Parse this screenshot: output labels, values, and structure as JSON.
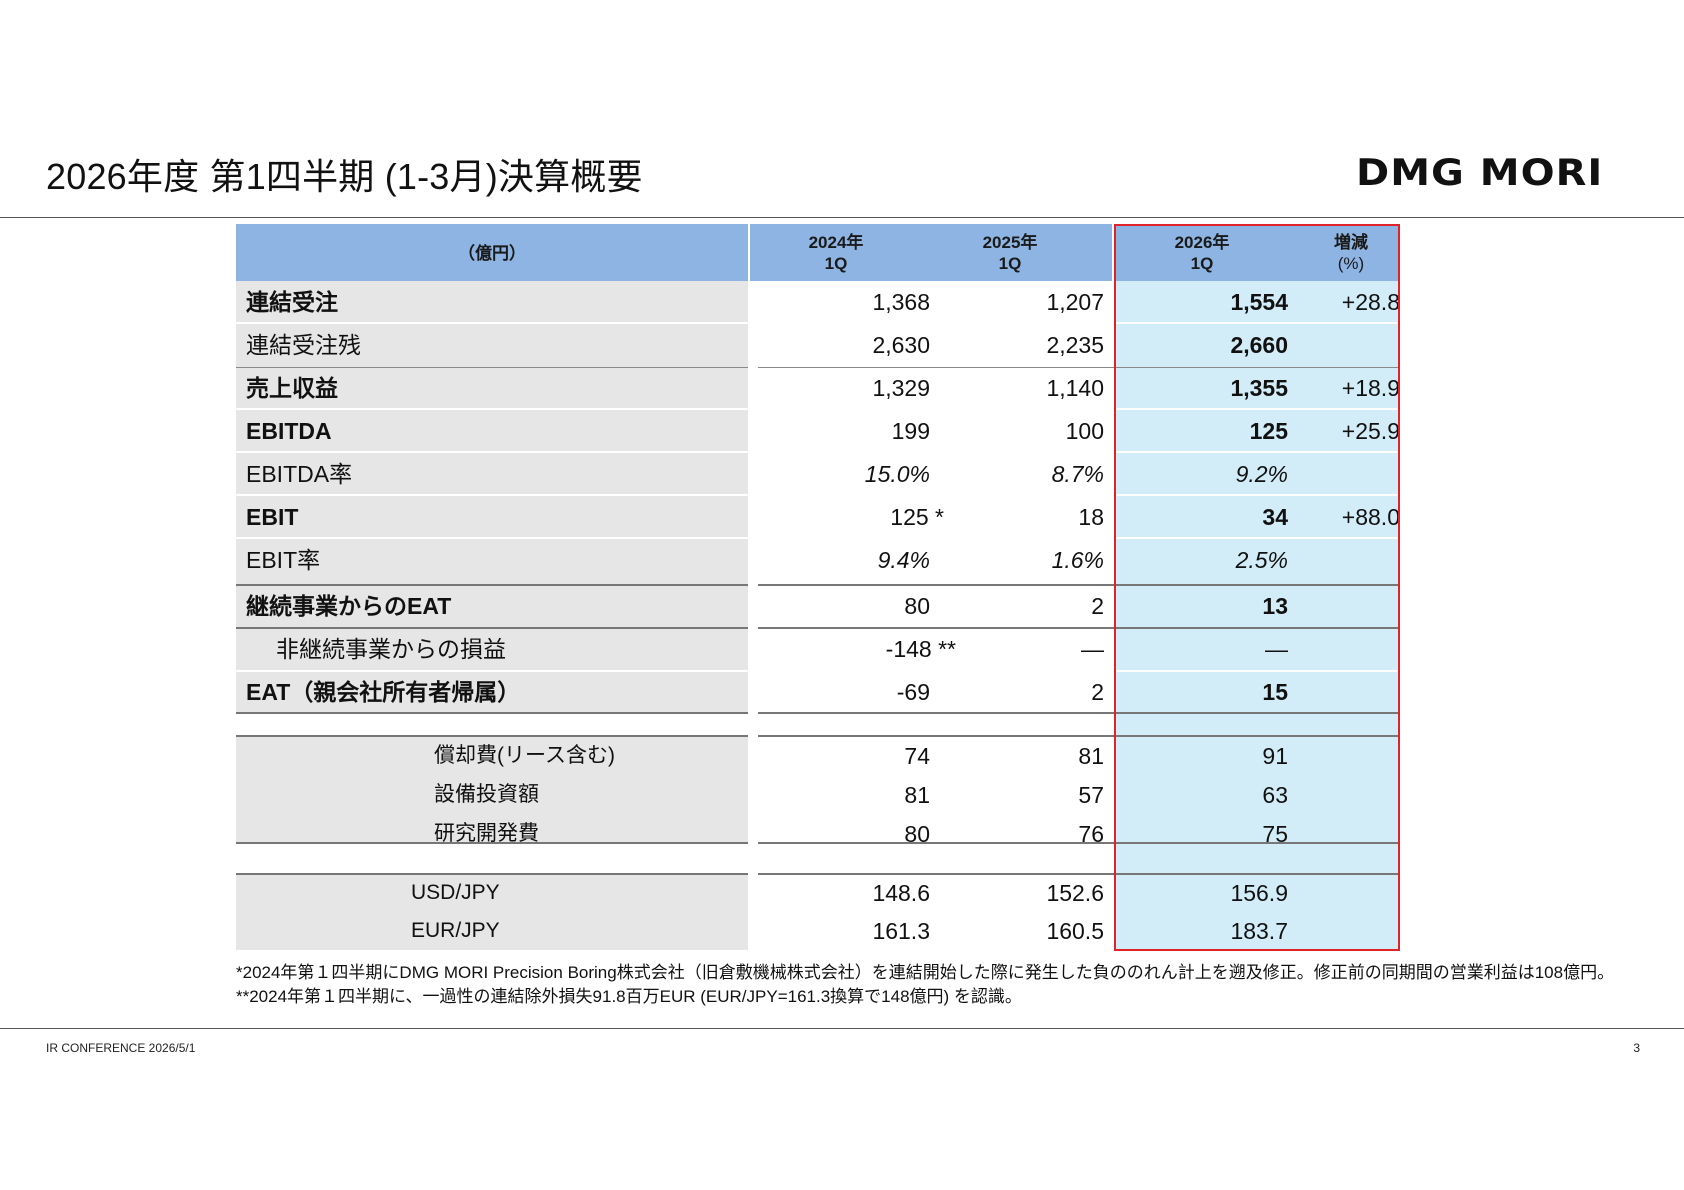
{
  "header": {
    "title": "2026年度 第1四半期 (1-3月)決算概要",
    "logo": "DMG MORI"
  },
  "table": {
    "unit_label": "（億円）",
    "col_2024": [
      "2024年",
      "1Q"
    ],
    "col_2025": [
      "2025年",
      "1Q"
    ],
    "col_2026": [
      "2026年",
      "1Q"
    ],
    "col_change": [
      "増減",
      "(%)"
    ],
    "rows": [
      {
        "label": "連結受注",
        "v2024": "1,368",
        "v2025": "1,207",
        "v2026": "1,554",
        "change": "+28.8"
      },
      {
        "label": "連結受注残",
        "v2024": "2,630",
        "v2025": "2,235",
        "v2026": "2,660",
        "change": ""
      },
      {
        "label": "売上収益",
        "v2024": "1,329",
        "v2025": "1,140",
        "v2026": "1,355",
        "change": "+18.9"
      },
      {
        "label": "EBITDA",
        "v2024": "199",
        "v2025": "100",
        "v2026": "125",
        "change": "+25.9"
      },
      {
        "label": "EBITDA率",
        "v2024": "15.0%",
        "v2025": "8.7%",
        "v2026": "9.2%",
        "change": ""
      },
      {
        "label": "EBIT",
        "v2024": "125 *",
        "v2025": "18",
        "v2026": "34",
        "change": "+88.0"
      },
      {
        "label": "EBIT率",
        "v2024": "9.4%",
        "v2025": "1.6%",
        "v2026": "2.5%",
        "change": ""
      },
      {
        "label": "継続事業からのEAT",
        "v2024": "80",
        "v2025": "2",
        "v2026": "13",
        "change": ""
      },
      {
        "label": "非継続事業からの損益",
        "v2024": "-148 **",
        "v2025": "—",
        "v2026": "—",
        "change": ""
      },
      {
        "label": "EAT（親会社所有者帰属）",
        "v2024": "-69",
        "v2025": "2",
        "v2026": "15",
        "change": ""
      }
    ],
    "sub_rows": [
      {
        "label": "償却費(リース含む)",
        "v2024": "74",
        "v2025": "81",
        "v2026": "91"
      },
      {
        "label": "設備投資額",
        "v2024": "81",
        "v2025": "57",
        "v2026": "63"
      },
      {
        "label": "研究開発費",
        "v2024": "80",
        "v2025": "76",
        "v2026": "75"
      }
    ],
    "fx_rows": [
      {
        "label": "USD/JPY",
        "v2024": "148.6",
        "v2025": "152.6",
        "v2026": "156.9"
      },
      {
        "label": "EUR/JPY",
        "v2024": "161.3",
        "v2025": "160.5",
        "v2026": "183.7"
      }
    ]
  },
  "notes": [
    "*2024年第１四半期にDMG MORI Precision Boring株式会社（旧倉敷機械株式会社）を連結開始した際に発生した負ののれん計上を遡及修正。修正前の同期間の営業利益は108億円。",
    "**2024年第１四半期に、一過性の連結除外損失91.8百万EUR (EUR/JPY=161.3換算で148億円) を認識。"
  ],
  "footer": {
    "left": "IR CONFERENCE 2026/5/1",
    "page": "3"
  }
}
